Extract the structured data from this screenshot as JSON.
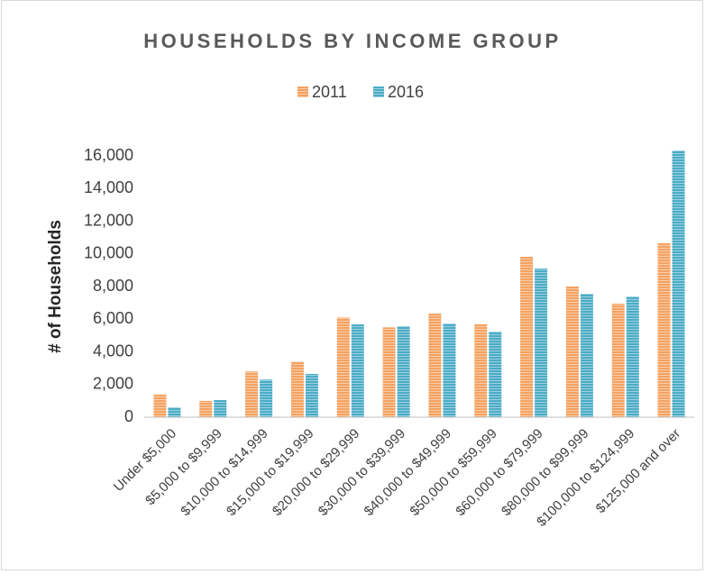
{
  "chart_data": {
    "type": "bar",
    "title": "HOUSEHOLDS BY INCOME GROUP",
    "y_label": "# of Households",
    "categories": [
      "Under $5,000",
      "$5,000 to $9,999",
      "$10,000 to $14,999",
      "$15,000 to $19,999",
      "$20,000 to $29,999",
      "$30,000 to $39,999",
      "$40,000 to $49,999",
      "$50,000 to $59,999",
      "$60,000 to $79,999",
      "$80,000 to $99,999",
      "$100,000 to $124,999",
      "$125,000 and over"
    ],
    "series": [
      {
        "name": "2011",
        "color": "#f4a261",
        "values": [
          1400,
          1000,
          2800,
          3400,
          6100,
          5500,
          6350,
          5700,
          9820,
          8000,
          6950,
          10650
        ]
      },
      {
        "name": "2016",
        "color": "#4bacc6",
        "values": [
          600,
          1050,
          2300,
          2650,
          5680,
          5570,
          5740,
          5240,
          9100,
          7560,
          7390,
          16330
        ]
      }
    ],
    "ylim": [
      0,
      16000
    ],
    "yticks": [
      0,
      {
        "value": 2000,
        "label": "2,000"
      },
      {
        "value": 4000,
        "label": "4,000"
      },
      {
        "value": 6000,
        "label": "6,000"
      },
      {
        "value": 8000,
        "label": "8,000"
      },
      {
        "value": 10000,
        "label": "10,000"
      },
      {
        "value": 12000,
        "label": "12,000"
      },
      {
        "value": 14000,
        "label": "14,000"
      },
      {
        "value": 16000,
        "label": "16,000"
      }
    ],
    "grid": false,
    "legend": "top"
  }
}
